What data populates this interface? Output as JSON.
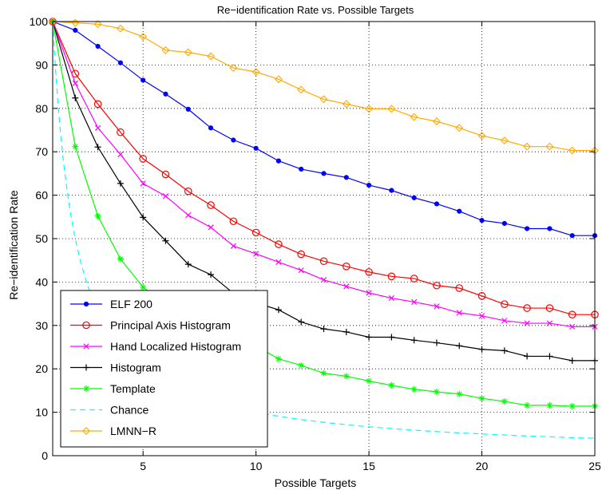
{
  "chart_data": {
    "type": "line",
    "title": "Re−identification Rate vs. Possible Targets",
    "xlabel": "Possible Targets",
    "ylabel": "Re−identification Rate",
    "xlim": [
      1,
      25
    ],
    "ylim": [
      0,
      100
    ],
    "xticks": [
      5,
      10,
      15,
      20,
      25
    ],
    "yticks": [
      0,
      10,
      20,
      30,
      40,
      50,
      60,
      70,
      80,
      90,
      100
    ],
    "grid": true,
    "legend_position": "bottom-left",
    "x": [
      1,
      2,
      3,
      4,
      5,
      6,
      7,
      8,
      9,
      10,
      11,
      12,
      13,
      14,
      15,
      16,
      17,
      18,
      19,
      20,
      21,
      22,
      23,
      24,
      25
    ],
    "series": [
      {
        "name": "ELF 200",
        "color": "#0000ff",
        "marker": "dot",
        "dash": "solid",
        "values": [
          100,
          98,
          94.3,
          90.5,
          86.5,
          83.3,
          79.8,
          75.5,
          72.7,
          70.8,
          67.9,
          66,
          65,
          64.1,
          62.3,
          61.1,
          59.4,
          58,
          56.3,
          54.2,
          53.5,
          52.3,
          52.3,
          50.7,
          50.7
        ]
      },
      {
        "name": "Principal Axis Histogram",
        "color": "#ff0000",
        "marker": "circle",
        "dash": "solid",
        "values": [
          100,
          88,
          81,
          74.5,
          68.4,
          64.8,
          60.9,
          57.7,
          54,
          51.4,
          48.7,
          46.4,
          44.8,
          43.6,
          42.3,
          41.3,
          40.8,
          39.2,
          38.6,
          36.8,
          34.9,
          34,
          34,
          32.5,
          32.5
        ]
      },
      {
        "name": "Hand Localized Histogram",
        "color": "#ff00ff",
        "marker": "x",
        "dash": "solid",
        "values": [
          100,
          85.8,
          75.5,
          69.4,
          62.7,
          59.8,
          55.4,
          52.6,
          48.3,
          46.5,
          44.6,
          42.7,
          40.5,
          39,
          37.5,
          36.3,
          35.4,
          34.4,
          32.9,
          32.2,
          31.1,
          30.5,
          30.5,
          29.7,
          29.7
        ]
      },
      {
        "name": "Histogram",
        "color": "#000000",
        "marker": "plus",
        "dash": "solid",
        "values": [
          100,
          82.4,
          71.1,
          62.7,
          54.9,
          49.5,
          44.1,
          41.7,
          37.4,
          35.2,
          33.6,
          30.8,
          29.2,
          28.5,
          27.3,
          27.3,
          26.6,
          26,
          25.3,
          24.5,
          24.2,
          22.9,
          22.9,
          21.9,
          21.9
        ]
      },
      {
        "name": "Template",
        "color": "#00ff00",
        "marker": "asterisk",
        "dash": "solid",
        "values": [
          100,
          71.2,
          55.2,
          45.3,
          38.8,
          35,
          31.7,
          29.3,
          27.4,
          25.3,
          22.3,
          20.8,
          19,
          18.3,
          17.2,
          16.2,
          15.3,
          14.7,
          14.2,
          13.2,
          12.5,
          11.6,
          11.6,
          11.4,
          11.4
        ]
      },
      {
        "name": "Chance",
        "color": "#00ffff",
        "marker": "none",
        "dash": "dashed",
        "values": [
          100,
          50,
          33.3,
          25,
          20,
          16.7,
          14.3,
          12.5,
          11.1,
          10,
          9.1,
          8.3,
          7.7,
          7.1,
          6.7,
          6.3,
          5.9,
          5.6,
          5.3,
          5,
          4.8,
          4.5,
          4.3,
          4.2,
          4
        ]
      },
      {
        "name": "LMNN−R",
        "color": "#ffaa00",
        "marker": "diamond",
        "dash": "solid",
        "values": [
          100,
          99.7,
          99.4,
          98.4,
          96.5,
          93.4,
          92.9,
          92,
          89.3,
          88.4,
          86.7,
          84.3,
          82.1,
          81,
          79.9,
          79.9,
          78,
          77,
          75.5,
          73.7,
          72.6,
          71.2,
          71.2,
          70.3,
          70.3
        ]
      }
    ]
  }
}
